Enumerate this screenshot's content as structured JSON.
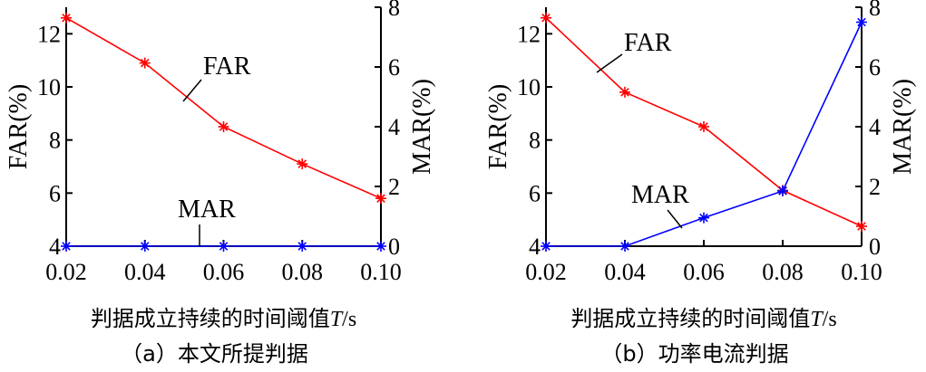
{
  "chart_data": [
    {
      "type": "line",
      "caption": "（a）本文所提判据",
      "xlabel": "判据成立持续的时间阈值T/s",
      "ylabel_left": "FAR(%)",
      "ylabel_right": "MAR(%)",
      "x": [
        0.02,
        0.04,
        0.06,
        0.08,
        0.1
      ],
      "x_tick_labels": [
        "0.02",
        "0.04",
        "0.06",
        "0.08",
        "0.10"
      ],
      "ylim_left": [
        4,
        13
      ],
      "yticks_left": [
        "4",
        "6",
        "8",
        "10",
        "12"
      ],
      "ylim_right": [
        0,
        8
      ],
      "yticks_right": [
        "0",
        "2",
        "4",
        "6",
        "8"
      ],
      "grid": false,
      "series": [
        {
          "name": "FAR",
          "axis": "left",
          "color": "#ff0000",
          "values": [
            12.6,
            10.9,
            8.5,
            7.1,
            5.8
          ]
        },
        {
          "name": "MAR",
          "axis": "right",
          "color": "#0000ff",
          "values": [
            0,
            0,
            0,
            0,
            0
          ]
        }
      ]
    },
    {
      "type": "line",
      "caption": "（b）功率电流判据",
      "xlabel": "判据成立持续的时间阈值T/s",
      "ylabel_left": "FAR(%)",
      "ylabel_right": "MAR(%)",
      "x": [
        0.02,
        0.04,
        0.06,
        0.08,
        0.1
      ],
      "x_tick_labels": [
        "0.02",
        "0.04",
        "0.06",
        "0.08",
        "0.10"
      ],
      "ylim_left": [
        4,
        13
      ],
      "yticks_left": [
        "4",
        "6",
        "8",
        "10",
        "12"
      ],
      "ylim_right": [
        0,
        8
      ],
      "yticks_right": [
        "0",
        "2",
        "4",
        "6",
        "8"
      ],
      "grid": false,
      "series": [
        {
          "name": "FAR",
          "axis": "left",
          "color": "#ff0000",
          "values": [
            12.6,
            9.8,
            8.5,
            6.1,
            4.75
          ]
        },
        {
          "name": "MAR",
          "axis": "right",
          "color": "#0000ff",
          "values": [
            0,
            0,
            0.95,
            1.85,
            7.5
          ]
        }
      ]
    }
  ]
}
